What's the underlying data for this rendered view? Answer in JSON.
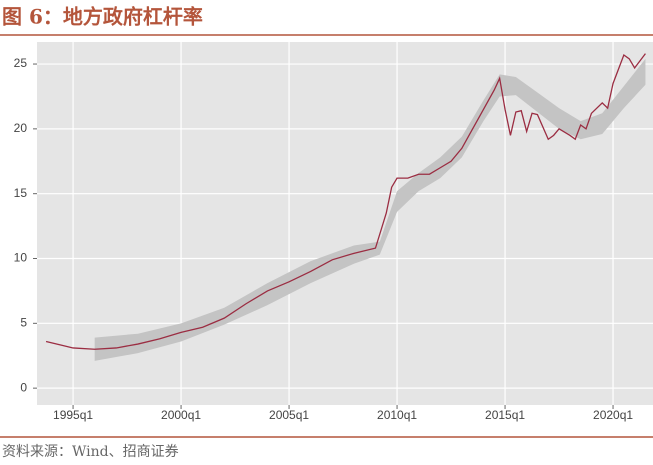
{
  "chart_data": {
    "type": "line",
    "title": "图 6：地方政府杠杆率",
    "source": "资料来源：Wind、招商证券",
    "color": "#9b2d42",
    "x": [
      1993.75,
      1994.5,
      1995.0,
      1996.0,
      1997.0,
      1998.0,
      1999.0,
      2000.0,
      2001.0,
      2002.0,
      2003.0,
      2004.0,
      2005.0,
      2006.0,
      2007.0,
      2008.0,
      2009.0,
      2009.5,
      2009.75,
      2010.0,
      2010.5,
      2011.0,
      2011.5,
      2012.0,
      2012.5,
      2013.0,
      2013.5,
      2014.0,
      2014.5,
      2014.75,
      2015.0,
      2015.25,
      2015.5,
      2015.75,
      2016.0,
      2016.25,
      2016.5,
      2017.0,
      2017.25,
      2017.5,
      2018.0,
      2018.25,
      2018.5,
      2018.75,
      2019.0,
      2019.5,
      2019.75,
      2020.0,
      2020.5,
      2020.75,
      2021.0,
      2021.5
    ],
    "values": [
      3.6,
      3.3,
      3.1,
      3.0,
      3.1,
      3.4,
      3.8,
      4.3,
      4.7,
      5.4,
      6.5,
      7.5,
      8.2,
      9.0,
      9.9,
      10.4,
      10.8,
      13.5,
      15.5,
      16.2,
      16.2,
      16.5,
      16.5,
      17.0,
      17.5,
      18.5,
      20.0,
      21.5,
      23.0,
      23.9,
      21.5,
      19.5,
      21.3,
      21.4,
      19.8,
      21.2,
      21.1,
      19.2,
      19.5,
      20.0,
      19.5,
      19.2,
      20.3,
      20.0,
      21.2,
      22.0,
      21.6,
      23.5,
      25.7,
      25.4,
      24.7,
      25.8
    ],
    "band": {
      "color": "#c4c4c4",
      "x": [
        1996,
        1998,
        2000,
        2002,
        2004,
        2006,
        2008,
        2009.2,
        2010,
        2011,
        2012,
        2013,
        2014,
        2014.75,
        2015.5,
        2016.5,
        2017.5,
        2018.5,
        2019.5,
        2020.5,
        2021.5
      ],
      "lower": [
        2.1,
        2.7,
        3.6,
        4.9,
        6.4,
        8.1,
        9.6,
        10.3,
        13.6,
        15.2,
        16.2,
        17.8,
        20.6,
        22.5,
        22.6,
        21.3,
        20.0,
        19.2,
        19.6,
        21.6,
        23.4
      ],
      "upper": [
        3.9,
        4.2,
        5.0,
        6.2,
        8.1,
        9.8,
        11.0,
        11.3,
        15.2,
        16.6,
        17.8,
        19.4,
        22.2,
        24.2,
        24.0,
        22.8,
        21.6,
        20.6,
        21.2,
        23.3,
        25.4
      ]
    },
    "xlim": [
      1993.33,
      2021.85
    ],
    "xticks": [
      {
        "value": 1995,
        "label": "1995q1"
      },
      {
        "value": 2000,
        "label": "2000q1"
      },
      {
        "value": 2005,
        "label": "2005q1"
      },
      {
        "value": 2010,
        "label": "2010q1"
      },
      {
        "value": 2015,
        "label": "2015q1"
      },
      {
        "value": 2020,
        "label": "2020q1"
      }
    ],
    "ylim": [
      -1.3,
      26.7
    ],
    "yticks": [
      0,
      5,
      10,
      15,
      20,
      25
    ],
    "grid": true
  }
}
